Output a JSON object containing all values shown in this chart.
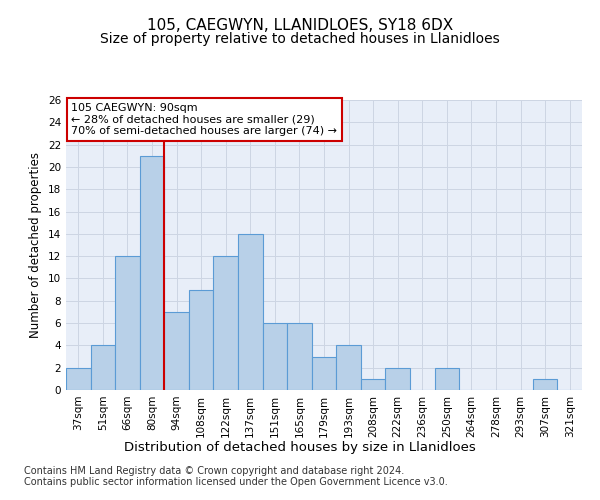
{
  "title": "105, CAEGWYN, LLANIDLOES, SY18 6DX",
  "subtitle": "Size of property relative to detached houses in Llanidloes",
  "xlabel": "Distribution of detached houses by size in Llanidloes",
  "ylabel": "Number of detached properties",
  "categories": [
    "37sqm",
    "51sqm",
    "66sqm",
    "80sqm",
    "94sqm",
    "108sqm",
    "122sqm",
    "137sqm",
    "151sqm",
    "165sqm",
    "179sqm",
    "193sqm",
    "208sqm",
    "222sqm",
    "236sqm",
    "250sqm",
    "264sqm",
    "278sqm",
    "293sqm",
    "307sqm",
    "321sqm"
  ],
  "values": [
    2,
    4,
    12,
    21,
    7,
    9,
    12,
    14,
    6,
    6,
    3,
    4,
    1,
    2,
    0,
    2,
    0,
    0,
    0,
    1,
    0
  ],
  "bar_color": "#b8d0e8",
  "bar_edge_color": "#5b9bd5",
  "bar_edge_width": 0.8,
  "vline_x": 3.5,
  "vline_color": "#cc0000",
  "annotation_text": "105 CAEGWYN: 90sqm\n← 28% of detached houses are smaller (29)\n70% of semi-detached houses are larger (74) →",
  "annotation_box_color": "#ffffff",
  "annotation_box_edge_color": "#cc0000",
  "ylim": [
    0,
    26
  ],
  "yticks": [
    0,
    2,
    4,
    6,
    8,
    10,
    12,
    14,
    16,
    18,
    20,
    22,
    24,
    26
  ],
  "grid_color": "#cdd5e3",
  "background_color": "#e8eef8",
  "footer_line1": "Contains HM Land Registry data © Crown copyright and database right 2024.",
  "footer_line2": "Contains public sector information licensed under the Open Government Licence v3.0.",
  "title_fontsize": 11,
  "subtitle_fontsize": 10,
  "xlabel_fontsize": 9.5,
  "ylabel_fontsize": 8.5,
  "tick_fontsize": 7.5,
  "annotation_fontsize": 8,
  "footer_fontsize": 7
}
